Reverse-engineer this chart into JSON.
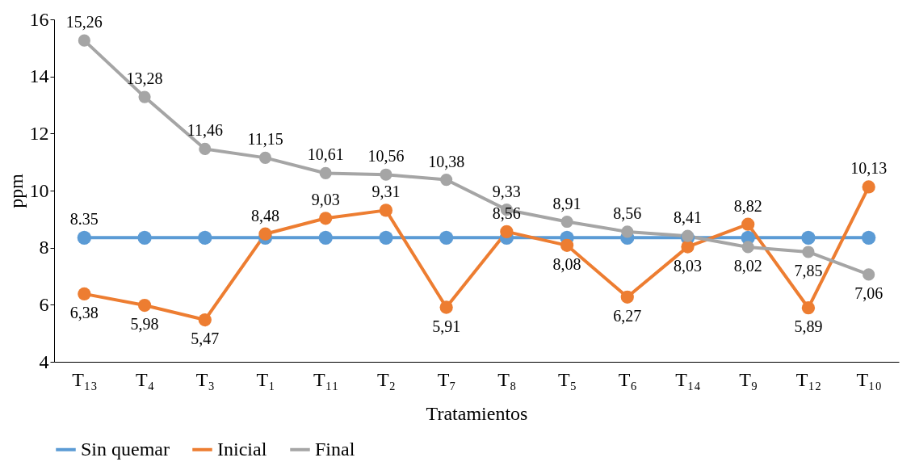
{
  "chart_data": {
    "type": "line",
    "xlabel": "Tratamientos",
    "ylabel": "ppm",
    "categories": [
      "T₁₃",
      "T₄",
      "T₃",
      "T₁",
      "T₁₁",
      "T₂",
      "T₇",
      "T₈",
      "T₅",
      "T₆",
      "T₁₄",
      "T₉",
      "T₁₂",
      "T₁₀"
    ],
    "series": [
      {
        "name": "Sin quemar",
        "color": "#5b9bd5",
        "values": [
          8.35,
          8.35,
          8.35,
          8.35,
          8.35,
          8.35,
          8.35,
          8.35,
          8.35,
          8.35,
          8.35,
          8.35,
          8.35,
          8.35
        ],
        "value_labels": [
          "8.35",
          null,
          null,
          null,
          null,
          null,
          null,
          null,
          null,
          null,
          null,
          null,
          null,
          null
        ]
      },
      {
        "name": "Inicial",
        "color": "#ed7d31",
        "values": [
          6.38,
          5.98,
          5.47,
          8.48,
          9.03,
          9.31,
          5.91,
          8.56,
          8.08,
          6.27,
          8.03,
          8.82,
          5.89,
          10.13
        ],
        "value_labels": [
          "6,38",
          "5,98",
          "5,47",
          "8,48",
          "9,03",
          "9,31",
          "5,91",
          "8,56",
          "8,08",
          "6,27",
          "8,03",
          "8,82",
          "5,89",
          "10,13"
        ]
      },
      {
        "name": "Final",
        "color": "#a5a5a5",
        "values": [
          15.26,
          13.28,
          11.46,
          11.15,
          10.61,
          10.56,
          10.38,
          9.33,
          8.91,
          8.56,
          8.41,
          8.02,
          7.85,
          7.06
        ],
        "value_labels": [
          "15,26",
          "13,28",
          "11,46",
          "11,15",
          "10,61",
          "10,56",
          "10,38",
          "9,33",
          "8,91",
          "8,56",
          "8,41",
          "8,02",
          "7,85",
          "7,06"
        ]
      }
    ],
    "ylim": [
      4,
      16
    ],
    "yticks": [
      4,
      6,
      8,
      10,
      12,
      14,
      16
    ],
    "grid": false,
    "legend": "bottom",
    "marker": "circle",
    "line_style": "solid"
  }
}
